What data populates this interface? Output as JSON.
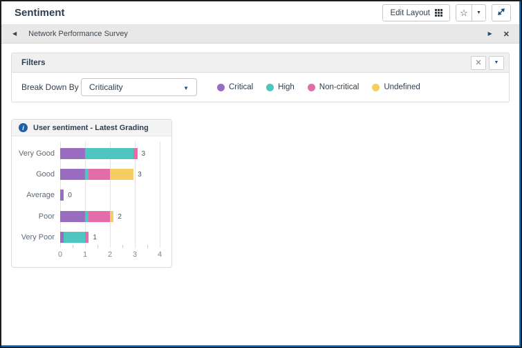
{
  "header": {
    "title": "Sentiment",
    "edit_layout_button": "Edit Layout",
    "star_icon": "☆",
    "caret_icon": "▼",
    "expand_icon": "expand-diagonal"
  },
  "survey_bar": {
    "title": "Network Performance Survey",
    "prev_icon": "◀",
    "next_icon": "▶",
    "close_icon": "✕"
  },
  "filters": {
    "title": "Filters",
    "close_icon": "✕",
    "collapse_icon": "▼",
    "break_down_by_label": "Break Down By",
    "breakdown_value": "Criticality",
    "dropdown_caret_icon": "▼"
  },
  "chart_card": {
    "info_icon": "i",
    "title": "User sentiment - Latest Grading"
  },
  "chart_data": {
    "type": "bar",
    "orientation": "horizontal",
    "stacked": true,
    "title": "User sentiment - Latest Grading",
    "categories": [
      "Very Good",
      "Good",
      "Average",
      "Poor",
      "Very Poor"
    ],
    "series": [
      {
        "name": "Critical",
        "color": "#9A6DC0",
        "values": [
          1,
          1,
          0,
          1,
          0
        ]
      },
      {
        "name": "High",
        "color": "#4DC6BF",
        "values": [
          2,
          0,
          0,
          0,
          1
        ]
      },
      {
        "name": "Non-critical",
        "color": "#E26DA8",
        "values": [
          0,
          1,
          0,
          1,
          0
        ]
      },
      {
        "name": "Undefined",
        "color": "#F5CE62",
        "values": [
          0,
          1,
          0,
          0,
          0
        ]
      }
    ],
    "totals": [
      3,
      3,
      0,
      2,
      1
    ],
    "bars": [
      {
        "category": "Very Good",
        "total": 3,
        "segments": [
          {
            "series": "Critical",
            "value": 1,
            "units": 1.0
          },
          {
            "series": "High",
            "value": 2,
            "units": 1.95
          },
          {
            "series": "Non-critical",
            "value": 0,
            "units": 0.15
          }
        ]
      },
      {
        "category": "Good",
        "total": 3,
        "segments": [
          {
            "series": "Critical",
            "value": 1,
            "units": 1.0
          },
          {
            "series": "High",
            "value": 0,
            "units": 0.15
          },
          {
            "series": "Non-critical",
            "value": 1,
            "units": 0.85
          },
          {
            "series": "Undefined",
            "value": 1,
            "units": 0.95
          }
        ]
      },
      {
        "category": "Average",
        "total": 0,
        "segments": [
          {
            "series": "Critical",
            "value": 0,
            "units": 0.15
          }
        ]
      },
      {
        "category": "Poor",
        "total": 2,
        "segments": [
          {
            "series": "Critical",
            "value": 1,
            "units": 1.0
          },
          {
            "series": "High",
            "value": 0,
            "units": 0.15
          },
          {
            "series": "Non-critical",
            "value": 1,
            "units": 0.85
          },
          {
            "series": "Undefined",
            "value": 0,
            "units": 0.15
          }
        ]
      },
      {
        "category": "Very Poor",
        "total": 1,
        "segments": [
          {
            "series": "Critical",
            "value": 0,
            "units": 0.15
          },
          {
            "series": "High",
            "value": 1,
            "units": 0.85
          },
          {
            "series": "Non-critical",
            "value": 0,
            "units": 0.15
          }
        ]
      }
    ],
    "xlim": [
      0,
      4
    ],
    "x_ticks": [
      0,
      1,
      2,
      3,
      4
    ],
    "minor_tick_step": 0.5,
    "grid": true,
    "legend_position": "filters-row"
  }
}
